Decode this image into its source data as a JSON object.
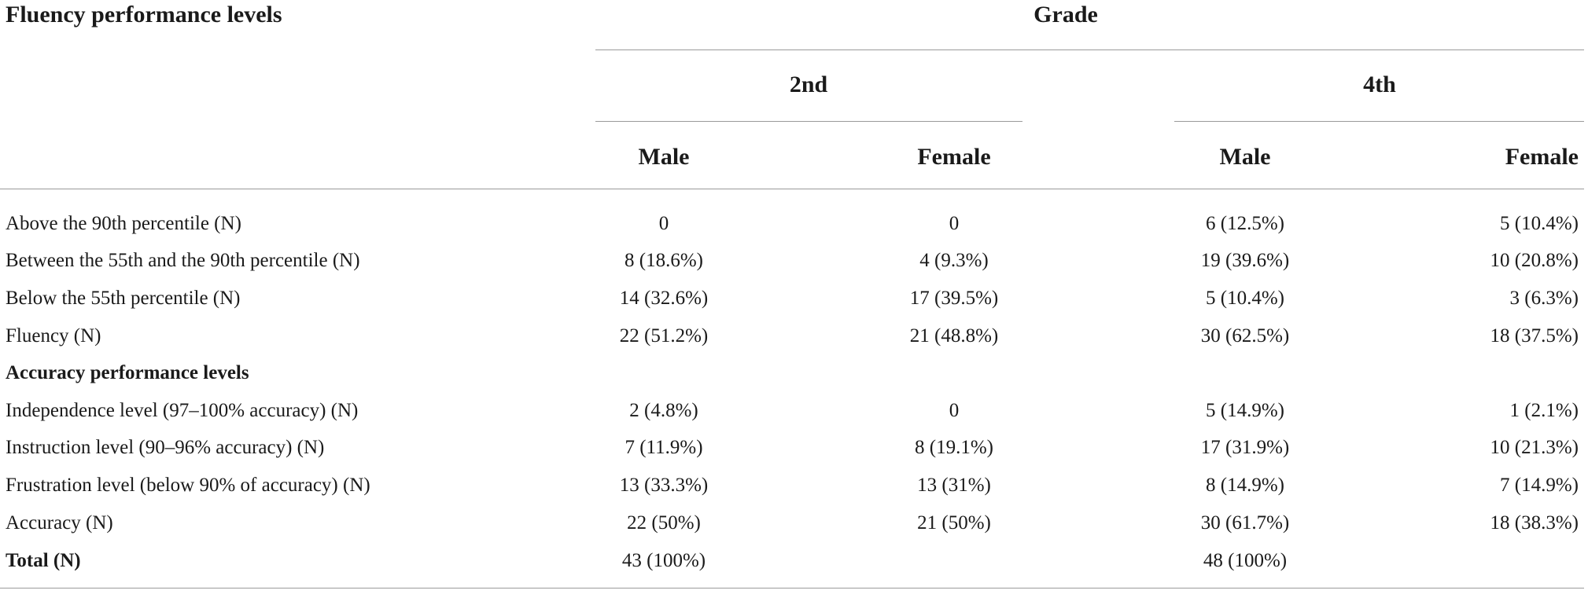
{
  "table": {
    "corner_header": "Fluency performance levels",
    "grade_header": "Grade",
    "grades": [
      "2nd",
      "4th"
    ],
    "sexes": [
      "Male",
      "Female",
      "Male",
      "Female"
    ],
    "rows": [
      {
        "label": "Above the 90th percentile (N)",
        "values": [
          "0",
          "0",
          "6 (12.5%)",
          "5 (10.4%)"
        ]
      },
      {
        "label": "Between the 55th and the 90th percentile (N)",
        "values": [
          "8 (18.6%)",
          "4 (9.3%)",
          "19 (39.6%)",
          "10 (20.8%)"
        ]
      },
      {
        "label": "Below the 55th percentile (N)",
        "values": [
          "14 (32.6%)",
          "17 (39.5%)",
          "5 (10.4%)",
          "3 (6.3%)"
        ]
      },
      {
        "label": "Fluency (N)",
        "values": [
          "22 (51.2%)",
          "21 (48.8%)",
          "30 (62.5%)",
          "18 (37.5%)"
        ]
      },
      {
        "label": "Accuracy performance levels",
        "section": true,
        "values": [
          "",
          "",
          "",
          ""
        ]
      },
      {
        "label": "Independence level (97–100% accuracy) (N)",
        "values": [
          "2 (4.8%)",
          "0",
          "5 (14.9%)",
          "1 (2.1%)"
        ]
      },
      {
        "label": "Instruction level (90–96% accuracy) (N)",
        "values": [
          "7 (11.9%)",
          "8 (19.1%)",
          "17 (31.9%)",
          "10 (21.3%)"
        ]
      },
      {
        "label": "Frustration level (below 90% of accuracy) (N)",
        "values": [
          "13 (33.3%)",
          "13 (31%)",
          "8 (14.9%)",
          "7 (14.9%)"
        ]
      },
      {
        "label": "Accuracy (N)",
        "values": [
          "22 (50%)",
          "21 (50%)",
          "30 (61.7%)",
          "18 (38.3%)"
        ]
      },
      {
        "label": "Total (N)",
        "bold": true,
        "values": [
          "43 (100%)",
          "",
          "48 (100%)",
          ""
        ]
      }
    ]
  }
}
